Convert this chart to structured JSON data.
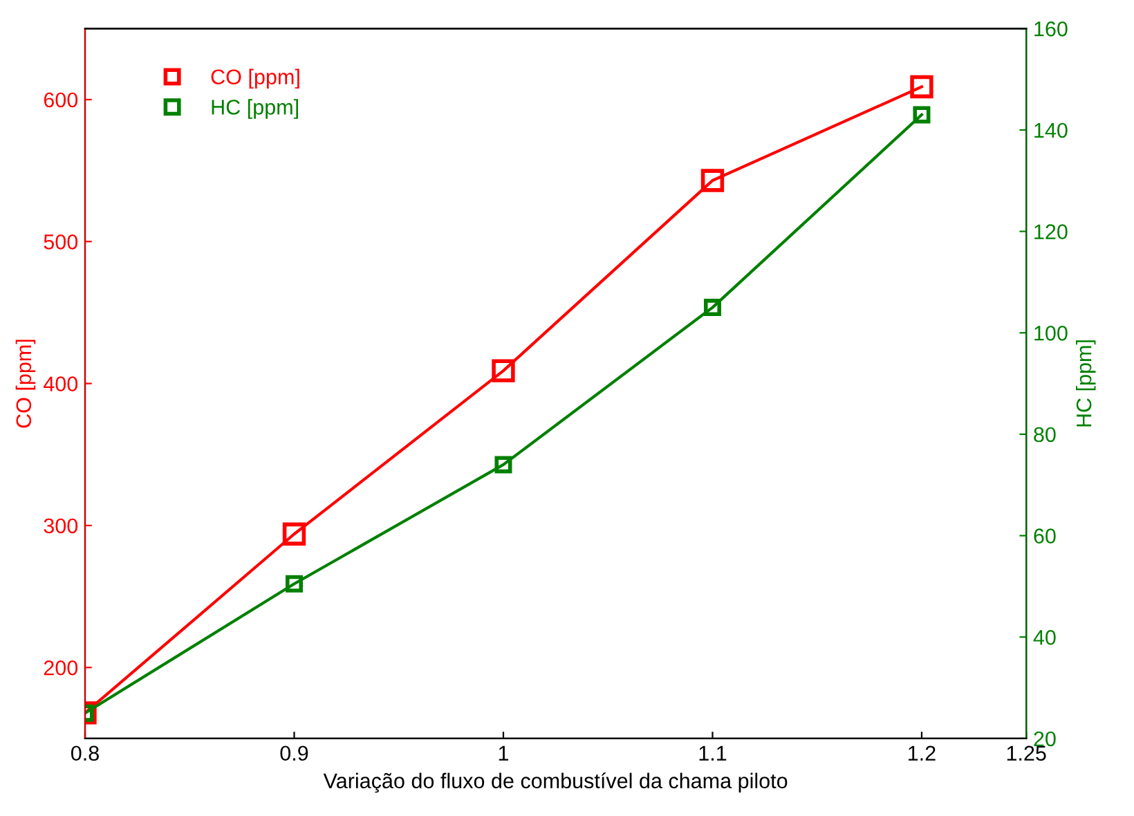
{
  "chart_data": {
    "type": "line",
    "xlabel": "Variação do fluxo de combustível da chama piloto",
    "ylabel": "CO [ppm]",
    "y2label": "HC [ppm]",
    "x": [
      0.8,
      0.9,
      1.0,
      1.1,
      1.2
    ],
    "series": [
      {
        "name": "CO [ppm]",
        "color": "#ff0000",
        "values": [
          168,
          294,
          409,
          543,
          609
        ]
      },
      {
        "name": "HC [ppm]",
        "color": "#008000",
        "axis": "y2",
        "values": [
          25,
          50.5,
          74,
          105,
          143
        ]
      }
    ],
    "xlim": [
      0.8,
      1.25
    ],
    "xticks": [
      0.8,
      0.9,
      1,
      1.1,
      1.2,
      1.25
    ],
    "ylim": [
      150,
      650
    ],
    "yticks": [
      200,
      300,
      400,
      500,
      600
    ],
    "y2lim": [
      20,
      160
    ],
    "y2ticks": [
      20,
      40,
      60,
      80,
      100,
      120,
      140,
      160
    ],
    "marker": "square",
    "line_style": "solid",
    "legend": "top left",
    "grid": false
  }
}
